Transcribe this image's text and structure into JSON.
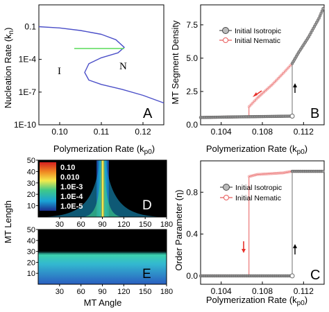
{
  "chart_data": [
    {
      "panel": "A",
      "type": "line",
      "xlabel": "Polymerization Rate (k",
      "xlabel_sub": "p0",
      "ylabel": "Nucleation Rate (k",
      "ylabel_sub": "n",
      "xlim": [
        0.095,
        0.125
      ],
      "ylim_log10": [
        -10,
        1
      ],
      "y_scale": "log",
      "x_ticks": [
        "0.10",
        "0.11",
        "0.12"
      ],
      "x_tick_values": [
        0.1,
        0.11,
        0.12
      ],
      "y_ticks": [
        "0.1",
        "1E-4",
        "1E-7",
        "1E-10"
      ],
      "y_tick_log10": [
        -1,
        -4,
        -7,
        -10
      ],
      "series": [
        {
          "color": "#4b4fc8",
          "x": [
            0.095,
            0.1,
            0.105,
            0.11,
            0.1135,
            0.1155,
            0.114,
            0.11,
            0.107,
            0.106,
            0.107,
            0.11,
            0.115,
            0.12,
            0.125
          ],
          "y_log10": [
            -1.0,
            -1.12,
            -1.35,
            -1.7,
            -2.2,
            -2.9,
            -3.4,
            -3.85,
            -4.4,
            -5.2,
            -5.9,
            -6.3,
            -6.75,
            -7.3,
            -8.0
          ]
        },
        {
          "color": "#66dd66",
          "x": [
            0.1035,
            0.1155
          ],
          "y_log10": [
            -3.0,
            -3.0
          ]
        }
      ],
      "annotations": [
        "I",
        "N"
      ]
    },
    {
      "panel": "B",
      "type": "line",
      "xlabel": "Polymerization Rate (k",
      "xlabel_sub": "p0",
      "ylabel": "MT Segment Density",
      "xlim": [
        0.102,
        0.114
      ],
      "ylim": [
        0,
        9
      ],
      "x_ticks": [
        "0.104",
        "0.108",
        "0.112"
      ],
      "x_tick_values": [
        0.104,
        0.108,
        0.112
      ],
      "y_ticks": [
        "0.0",
        "2.5",
        "5.0",
        "7.5"
      ],
      "y_tick_values": [
        0,
        2.5,
        5,
        7.5
      ],
      "legend": {
        "placement": "top-left",
        "entries": [
          "Initial Isotropic",
          "Initial Nematic"
        ]
      },
      "series": [
        {
          "name": "Initial Isotropic",
          "color": "#555555",
          "x": [
            0.102,
            0.106,
            0.11,
            0.1109,
            0.1109,
            0.1115,
            0.1125,
            0.1135,
            0.114
          ],
          "y": [
            0.55,
            0.6,
            0.64,
            0.65,
            4.6,
            5.4,
            6.6,
            8.0,
            8.9
          ]
        },
        {
          "name": "Initial Nematic",
          "color": "#e85a5a",
          "x": [
            0.102,
            0.106,
            0.1067,
            0.1067,
            0.1075,
            0.109,
            0.11,
            0.1109,
            0.1115,
            0.1125,
            0.1135,
            0.114
          ],
          "y": [
            0.55,
            0.6,
            0.6,
            1.35,
            2.0,
            3.05,
            3.85,
            4.6,
            5.4,
            6.6,
            8.0,
            8.9
          ]
        }
      ],
      "arrows": [
        {
          "color": "#e8302a",
          "direction": "down-left"
        },
        {
          "color": "#000000",
          "direction": "up"
        }
      ]
    },
    {
      "panel": "C",
      "type": "line",
      "xlabel": "Polymerization Rate (k",
      "xlabel_sub": "p0",
      "ylabel": "Order Parameter (η)",
      "xlim": [
        0.102,
        0.114
      ],
      "ylim": [
        -0.08,
        1.1
      ],
      "x_ticks": [
        "0.104",
        "0.108",
        "0.112"
      ],
      "x_tick_values": [
        0.104,
        0.108,
        0.112
      ],
      "y_ticks": [
        "0.0",
        "0.4",
        "0.8"
      ],
      "y_tick_values": [
        0,
        0.4,
        0.8
      ],
      "legend": {
        "placement": "top-center",
        "entries": [
          "Initial Isotropic",
          "Initial Nematic"
        ]
      },
      "series": [
        {
          "name": "Initial Isotropic",
          "color": "#555555",
          "x": [
            0.102,
            0.1109,
            0.1109,
            0.114
          ],
          "y": [
            0.0,
            0.0,
            1.0,
            1.0
          ]
        },
        {
          "name": "Initial Nematic",
          "color": "#e85a5a",
          "x": [
            0.102,
            0.1067,
            0.1067,
            0.1075,
            0.11,
            0.1109,
            0.114
          ],
          "y": [
            0.0,
            0.0,
            0.95,
            0.97,
            0.985,
            1.0,
            1.0
          ]
        }
      ],
      "arrows": [
        {
          "color": "#e8302a",
          "direction": "down"
        },
        {
          "color": "#000000",
          "direction": "up"
        }
      ]
    },
    {
      "panel": "D",
      "type": "heatmap",
      "ylabel": "MT Length",
      "xlabel": "",
      "xlim": [
        0,
        180
      ],
      "ylim": [
        0,
        50
      ],
      "x_ticks": [
        "30",
        "60",
        "90",
        "120",
        "150",
        "180"
      ],
      "y_ticks": [
        "10",
        "20",
        "30",
        "40",
        "50"
      ],
      "color_scale": "log",
      "legend": {
        "placement": "top-left",
        "entries": [
          "0.10",
          "0.010",
          "1.0E-3",
          "1.0E-4",
          "1.0E-5"
        ]
      },
      "peak_angle": 90
    },
    {
      "panel": "E",
      "type": "heatmap",
      "ylabel": "MT Length",
      "xlabel": "MT Angle",
      "xlim": [
        0,
        180
      ],
      "ylim": [
        0,
        50
      ],
      "x_ticks": [
        "30",
        "60",
        "90",
        "120",
        "150",
        "180"
      ],
      "y_ticks": [
        "10",
        "20",
        "30",
        "40",
        "50"
      ],
      "color_scale": "log",
      "profile": "angle-independent"
    }
  ]
}
